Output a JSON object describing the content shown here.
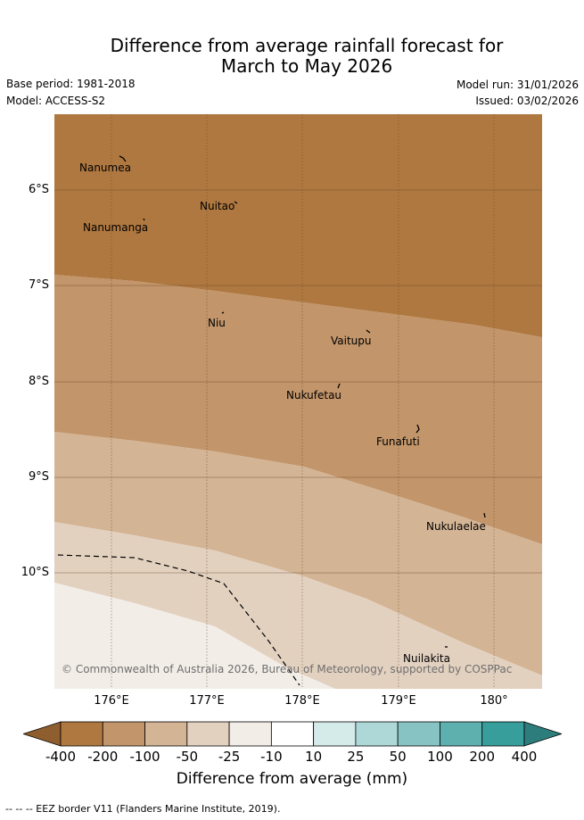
{
  "header": {
    "title_line1": "Difference from average rainfall forecast for",
    "title_line2": "March to May 2026",
    "base_period": "Base period: 1981-2018",
    "model": "Model: ACCESS-S2",
    "model_run": "Model run: 31/01/2026",
    "issued": "Issued: 03/02/2026"
  },
  "map": {
    "lat_labels": [
      "6°S",
      "7°S",
      "8°S",
      "9°S",
      "10°S"
    ],
    "lon_labels": [
      "176°E",
      "177°E",
      "178°E",
      "179°E",
      "180°"
    ],
    "places": [
      "Nanumea",
      "Nuitao",
      "Nanumanga",
      "Niu",
      "Vaitupu",
      "Nukufetau",
      "Funafuti",
      "Nukulaelae",
      "Nuilakita"
    ],
    "zone_values_mm": [
      -200,
      -100,
      -50,
      -25,
      -10
    ],
    "copyright": "© Commonwealth of Australia 2026, Bureau of Meteorology, supported by COSPPac"
  },
  "colorbar": {
    "ticks": [
      "-400",
      "-200",
      "-100",
      "-50",
      "-25",
      "-10",
      "10",
      "25",
      "50",
      "100",
      "200",
      "400"
    ],
    "colors": [
      "#af7840",
      "#c2956a",
      "#d3b495",
      "#e3d1c0",
      "#f2ede7",
      "#ffffff",
      "#d5ebe9",
      "#aed8d7",
      "#87c3c3",
      "#5eb0af",
      "#379e9c"
    ],
    "extend_low_color": "#8f5e2f",
    "extend_high_color": "#2c7d7b",
    "label": "Difference from average (mm)"
  },
  "footer": {
    "eez_note": "--  --  -- EEZ border V11 (Flanders Marine Institute, 2019)."
  }
}
